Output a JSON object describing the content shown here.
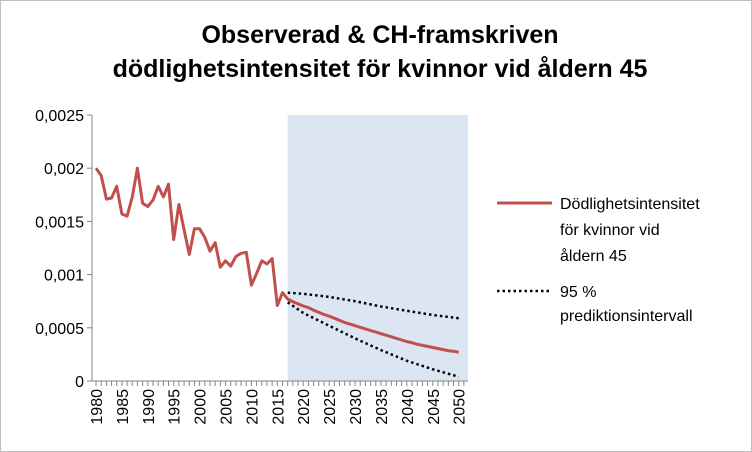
{
  "chart_data": {
    "type": "line",
    "title_lines": [
      "Observerad & CH-framskriven",
      "dödlighetsintensitet för kvinnor vid åldern 45"
    ],
    "xlabel": "",
    "ylabel": "",
    "xlim": [
      1980,
      2050
    ],
    "ylim": [
      0,
      0.0025
    ],
    "grid": false,
    "legend_position": "right",
    "y_ticks": [
      {
        "value": 0,
        "label": "0"
      },
      {
        "value": 0.0005,
        "label": "0,0005"
      },
      {
        "value": 0.001,
        "label": "0,001"
      },
      {
        "value": 0.0015,
        "label": "0,0015"
      },
      {
        "value": 0.002,
        "label": "0,002"
      },
      {
        "value": 0.0025,
        "label": "0,0025"
      }
    ],
    "x_ticks": [
      {
        "value": 1980,
        "label": "1980"
      },
      {
        "value": 1985,
        "label": "1985"
      },
      {
        "value": 1990,
        "label": "1990"
      },
      {
        "value": 1995,
        "label": "1995"
      },
      {
        "value": 2000,
        "label": "2000"
      },
      {
        "value": 2005,
        "label": "2005"
      },
      {
        "value": 2010,
        "label": "2010"
      },
      {
        "value": 2015,
        "label": "2015"
      },
      {
        "value": 2020,
        "label": "2020"
      },
      {
        "value": 2025,
        "label": "2025"
      },
      {
        "value": 2030,
        "label": "2030"
      },
      {
        "value": 2035,
        "label": "2035"
      },
      {
        "value": 2040,
        "label": "2040"
      },
      {
        "value": 2045,
        "label": "2045"
      },
      {
        "value": 2050,
        "label": "2050"
      }
    ],
    "shaded_region": {
      "x_start": 2017,
      "x_end": 2051,
      "color": "#dce6f2"
    },
    "series": [
      {
        "name_lines": [
          "Dödlighetsintensitet",
          "för kvinnor vid",
          "åldern 45"
        ],
        "color": "#c0504d",
        "style": "solid",
        "x": [
          1980,
          1981,
          1982,
          1983,
          1984,
          1985,
          1986,
          1987,
          1988,
          1989,
          1990,
          1991,
          1992,
          1993,
          1994,
          1995,
          1996,
          1997,
          1998,
          1999,
          2000,
          2001,
          2002,
          2003,
          2004,
          2005,
          2006,
          2007,
          2008,
          2009,
          2010,
          2011,
          2012,
          2013,
          2014,
          2015,
          2016,
          2017,
          2018,
          2019,
          2020,
          2021,
          2022,
          2023,
          2024,
          2025,
          2026,
          2027,
          2028,
          2029,
          2030,
          2031,
          2032,
          2033,
          2034,
          2035,
          2036,
          2037,
          2038,
          2039,
          2040,
          2041,
          2042,
          2043,
          2044,
          2045,
          2046,
          2047,
          2048,
          2049,
          2050
        ],
        "y": [
          0.002,
          0.00193,
          0.00171,
          0.00172,
          0.00183,
          0.00157,
          0.00155,
          0.00173,
          0.002,
          0.00167,
          0.00164,
          0.0017,
          0.00183,
          0.00173,
          0.00185,
          0.00133,
          0.00166,
          0.00142,
          0.00119,
          0.00143,
          0.00143,
          0.00135,
          0.00122,
          0.0013,
          0.00107,
          0.00113,
          0.00108,
          0.00117,
          0.0012,
          0.00121,
          0.0009,
          0.00101,
          0.00113,
          0.0011,
          0.00115,
          0.00071,
          0.00083,
          0.00077,
          0.000745,
          0.000725,
          0.000705,
          0.00069,
          0.000665,
          0.000645,
          0.000625,
          0.00061,
          0.00059,
          0.00057,
          0.00055,
          0.000535,
          0.00052,
          0.000505,
          0.00049,
          0.000475,
          0.00046,
          0.000445,
          0.00043,
          0.000415,
          0.0004,
          0.000385,
          0.00037,
          0.00036,
          0.000345,
          0.000335,
          0.000325,
          0.000315,
          0.000305,
          0.000295,
          0.000285,
          0.00028,
          0.00027
        ]
      },
      {
        "name_lines": [
          "95 %",
          "prediktionsintervall"
        ],
        "color": "#000000",
        "style": "dotted",
        "bands": [
          {
            "x": [
              2017,
              2020,
              2025,
              2030,
              2035,
              2040,
              2045,
              2050
            ],
            "y": [
              0.00083,
              0.00082,
              0.00079,
              0.00075,
              0.0007,
              0.00066,
              0.00062,
              0.00059
            ]
          },
          {
            "x": [
              2017,
              2020,
              2025,
              2030,
              2035,
              2040,
              2045,
              2050
            ],
            "y": [
              0.00074,
              0.00064,
              0.00052,
              0.0004,
              0.00029,
              0.00019,
              0.00011,
              4e-05
            ]
          }
        ]
      }
    ]
  }
}
